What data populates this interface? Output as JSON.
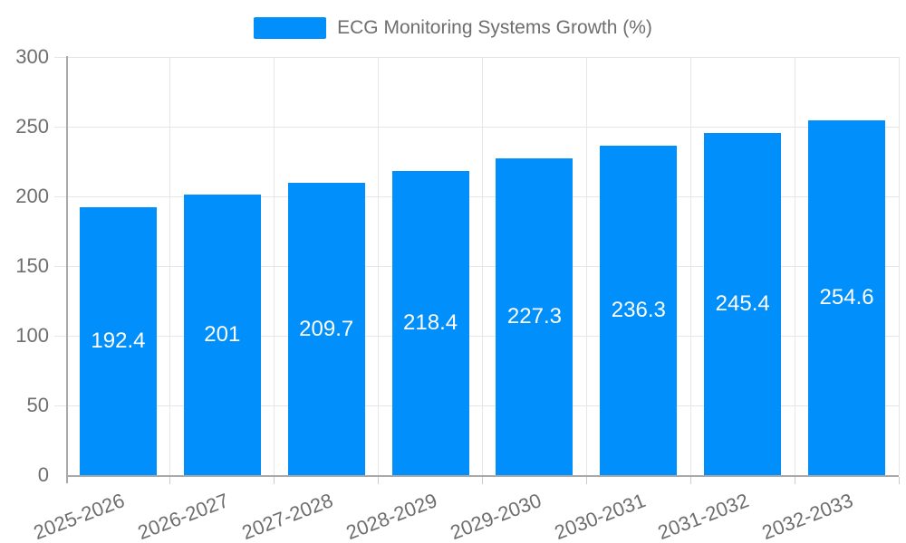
{
  "legend": {
    "label": "ECG Monitoring Systems Growth (%)",
    "swatch_color": "#008FFB"
  },
  "chart_data": {
    "type": "bar",
    "title": "ECG Monitoring Systems Growth (%)",
    "categories": [
      "2025-2026",
      "2026-2027",
      "2027-2028",
      "2028-2029",
      "2029-2030",
      "2030-2031",
      "2031-2032",
      "2032-2033"
    ],
    "values": [
      192.4,
      201,
      209.7,
      218.4,
      227.3,
      236.3,
      245.4,
      254.6
    ],
    "value_labels": [
      "192.4",
      "201",
      "209.7",
      "218.4",
      "227.3",
      "236.3",
      "245.4",
      "254.6"
    ],
    "xlabel": "",
    "ylabel": "",
    "ylim": [
      0,
      300
    ],
    "yticks": [
      0,
      50,
      100,
      150,
      200,
      250,
      300
    ],
    "grid": true,
    "legend_position": "top",
    "bar_color": "#008FFB",
    "value_label_color": "#ffffff"
  },
  "colors": {
    "accent": "#008FFB",
    "gridline": "#e6e6e6",
    "axis_line": "#a9a9a9",
    "category_tick": "#cccccc",
    "tick_text": "#6e6e6e",
    "background": "#ffffff"
  }
}
